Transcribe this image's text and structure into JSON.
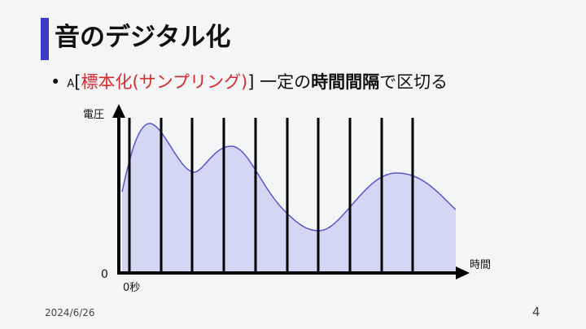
{
  "slide": {
    "title": "音のデジタル化",
    "bullet": {
      "marker": "•",
      "prefix": "A",
      "open_bracket": "[",
      "highlight": "標本化(サンプリング)",
      "close_bracket": "]",
      "text_before_strong": " 一定の",
      "strong": "時間間隔",
      "text_after_strong": "で区切る"
    },
    "date": "2024/6/26",
    "page_number": "4"
  },
  "diagram": {
    "y_axis_label": "電圧",
    "x_axis_label": "時間",
    "origin_label": "0",
    "x_origin_label": "0秒",
    "wave_color": "#5555cc",
    "fill_color": "#d5d6f3",
    "axis_color": "#000000",
    "sample_lines": 10
  }
}
